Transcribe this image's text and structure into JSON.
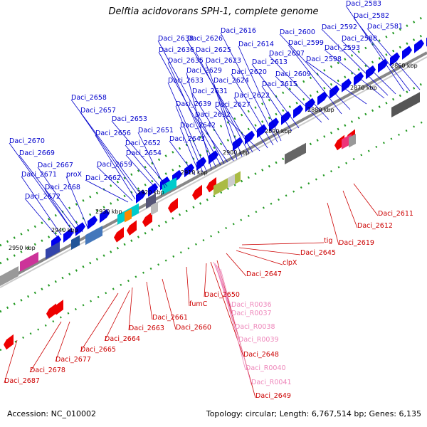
{
  "title": "Delftia acidovorans SPH-1, complete genome",
  "footer": {
    "accession": "Accession: NC_010002",
    "topology": "Topology: circular; Length: 6,767,514 bp; Genes: 6,135"
  },
  "colors": {
    "forward_gene": "#0000ee",
    "reverse_gene": "#ee0000",
    "forward_label": "#0000cc",
    "reverse_label": "#cc0000",
    "rna_label": "#ee88bb",
    "backbone": "#888888",
    "tick": "#229922"
  },
  "scale": {
    "ticks": [
      "2860 kbp",
      "2870 kbp",
      "2880 kbp",
      "2890 kbp",
      "2900 kbp",
      "2910 kbp",
      "2920 kbp",
      "2930 kbp",
      "2940 kbp",
      "2950 kbp"
    ]
  },
  "forward_labels": [
    "Daci_2583",
    "Daci_2582",
    "Daci_2581",
    "Daci_2592",
    "Daci_2588",
    "Daci_2593",
    "Daci_2598",
    "Daci_2600",
    "Daci_2599",
    "Daci_2607",
    "Daci_2609",
    "Daci_2613",
    "Daci_2615",
    "Daci_2616",
    "Daci_2614",
    "Daci_2620",
    "Daci_2622",
    "Daci_2627",
    "Daci_2626",
    "Daci_2625",
    "Daci_2623",
    "Daci_2624",
    "Daci_2631",
    "Daci_2632",
    "Daci_2638",
    "Daci_2636",
    "Daci_2635",
    "Daci_2629",
    "Daci_2633",
    "Daci_2639",
    "Daci_2642",
    "Daci_2643",
    "Daci_2658",
    "Daci_2657",
    "Daci_2653",
    "Daci_2656",
    "Daci_2651",
    "Daci_2652",
    "Daci_2654",
    "Daci_2659",
    "Daci_2662",
    "Daci_2670",
    "Daci_2669",
    "Daci_2667",
    "Daci_2671",
    "proX",
    "Daci_2668",
    "Daci_2672"
  ],
  "reverse_labels": [
    "Daci_2611",
    "Daci_2612",
    "Daci_2619",
    "tig",
    "Daci_2645",
    "clpX",
    "Daci_2647",
    "fumC",
    "Daci_2650",
    "Daci_2660",
    "Daci_2661",
    "Daci_2663",
    "Daci_2664",
    "Daci_2665",
    "Daci_2648",
    "Daci_2649",
    "Daci_2677",
    "Daci_2678",
    "Daci_2687"
  ],
  "rna_labels": [
    "Daci_R0036",
    "Daci_R0037",
    "Daci_R0038",
    "Daci_R0039",
    "Daci_R0040",
    "Daci_R0041"
  ]
}
